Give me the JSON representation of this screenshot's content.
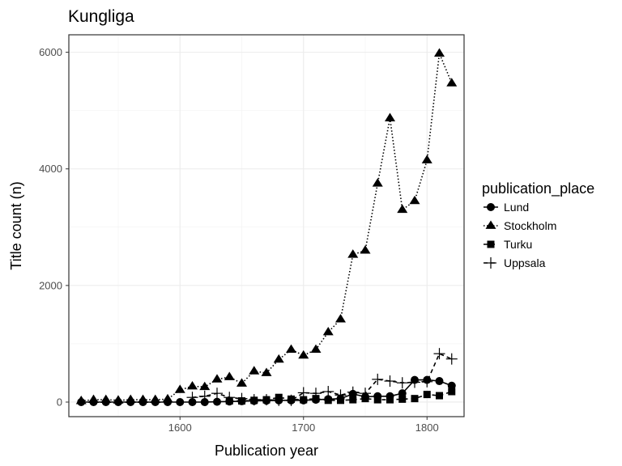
{
  "chart_data": {
    "type": "line",
    "title": "Kungliga",
    "xlabel": "Publication year",
    "ylabel": "Title count (n)",
    "xlim": [
      1510,
      1830
    ],
    "ylim": [
      -250,
      6300
    ],
    "x_ticks": [
      1600,
      1700,
      1800
    ],
    "x_tick_labels": [
      "1600",
      "1700",
      "1800"
    ],
    "y_ticks": [
      0,
      2000,
      4000,
      6000
    ],
    "y_tick_labels": [
      "0",
      "2000",
      "4000",
      "6000"
    ],
    "grid": true,
    "legend": {
      "title": "publication_place",
      "position": "right"
    },
    "series": [
      {
        "name": "Lund",
        "marker": "circle",
        "linestyle": "solid",
        "x": [
          1520,
          1530,
          1540,
          1550,
          1560,
          1570,
          1580,
          1590,
          1600,
          1610,
          1620,
          1630,
          1640,
          1650,
          1660,
          1670,
          1680,
          1690,
          1700,
          1710,
          1720,
          1730,
          1740,
          1750,
          1760,
          1770,
          1780,
          1790,
          1800,
          1810,
          1820
        ],
        "values": [
          0,
          0,
          0,
          0,
          0,
          0,
          0,
          0,
          0,
          0,
          0,
          5,
          10,
          15,
          20,
          25,
          30,
          30,
          30,
          40,
          50,
          60,
          140,
          90,
          100,
          100,
          150,
          380,
          380,
          360,
          280
        ]
      },
      {
        "name": "Stockholm",
        "marker": "triangle",
        "linestyle": "dotted",
        "x": [
          1520,
          1530,
          1540,
          1550,
          1560,
          1570,
          1580,
          1590,
          1600,
          1610,
          1620,
          1630,
          1640,
          1650,
          1660,
          1670,
          1680,
          1690,
          1700,
          1710,
          1720,
          1730,
          1740,
          1750,
          1760,
          1770,
          1780,
          1790,
          1800,
          1810,
          1820
        ],
        "values": [
          20,
          40,
          40,
          30,
          40,
          40,
          40,
          50,
          210,
          270,
          260,
          390,
          430,
          320,
          530,
          500,
          730,
          900,
          800,
          900,
          1200,
          1420,
          2530,
          2600,
          3750,
          4870,
          3300,
          3450,
          4150,
          5980,
          5470
        ]
      },
      {
        "name": "Turku",
        "marker": "square",
        "linestyle": "dashed",
        "x": [
          1640,
          1650,
          1660,
          1670,
          1680,
          1690,
          1700,
          1710,
          1720,
          1730,
          1740,
          1750,
          1760,
          1770,
          1780,
          1790,
          1800,
          1810,
          1820
        ],
        "values": [
          20,
          20,
          30,
          40,
          80,
          50,
          40,
          60,
          30,
          30,
          40,
          60,
          40,
          40,
          50,
          60,
          130,
          110,
          180
        ]
      },
      {
        "name": "Uppsala",
        "marker": "cross",
        "linestyle": "dashed",
        "x": [
          1610,
          1620,
          1630,
          1640,
          1650,
          1660,
          1670,
          1680,
          1690,
          1700,
          1710,
          1720,
          1730,
          1740,
          1750,
          1760,
          1770,
          1780,
          1790,
          1800,
          1810,
          1820
        ],
        "values": [
          80,
          100,
          150,
          80,
          60,
          40,
          40,
          30,
          30,
          160,
          150,
          180,
          120,
          170,
          150,
          390,
          360,
          330,
          340,
          350,
          830,
          740
        ]
      }
    ]
  }
}
